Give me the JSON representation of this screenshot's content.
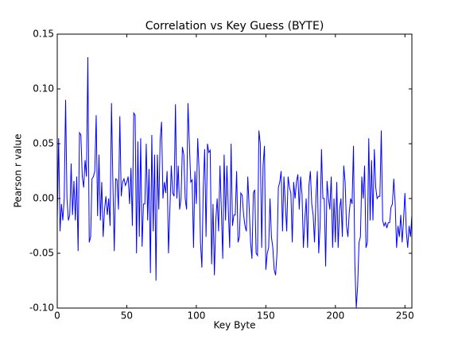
{
  "chart_data": {
    "type": "line",
    "title": "Correlation vs Key Guess (BYTE)",
    "x_label": "Key Byte",
    "y_label": "Pearson r value",
    "x": [
      0,
      1,
      2,
      3,
      4,
      5,
      6,
      7,
      8,
      9,
      10,
      11,
      12,
      13,
      14,
      15,
      16,
      17,
      18,
      19,
      20,
      21,
      22,
      23,
      24,
      25,
      26,
      27,
      28,
      29,
      30,
      31,
      32,
      33,
      34,
      35,
      36,
      37,
      38,
      39,
      40,
      41,
      42,
      43,
      44,
      45,
      46,
      47,
      48,
      49,
      50,
      51,
      52,
      53,
      54,
      55,
      56,
      57,
      58,
      59,
      60,
      61,
      62,
      63,
      64,
      65,
      66,
      67,
      68,
      69,
      70,
      71,
      72,
      73,
      74,
      75,
      76,
      77,
      78,
      79,
      80,
      81,
      82,
      83,
      84,
      85,
      86,
      87,
      88,
      89,
      90,
      91,
      92,
      93,
      94,
      95,
      96,
      97,
      98,
      99,
      100,
      101,
      102,
      103,
      104,
      105,
      106,
      107,
      108,
      109,
      110,
      111,
      112,
      113,
      114,
      115,
      116,
      117,
      118,
      119,
      120,
      121,
      122,
      123,
      124,
      125,
      126,
      127,
      128,
      129,
      130,
      131,
      132,
      133,
      134,
      135,
      136,
      137,
      138,
      139,
      140,
      141,
      142,
      143,
      144,
      145,
      146,
      147,
      148,
      149,
      150,
      151,
      152,
      153,
      154,
      155,
      156,
      157,
      158,
      159,
      160,
      161,
      162,
      163,
      164,
      165,
      166,
      167,
      168,
      169,
      170,
      171,
      172,
      173,
      174,
      175,
      176,
      177,
      178,
      179,
      180,
      181,
      182,
      183,
      184,
      185,
      186,
      187,
      188,
      189,
      190,
      191,
      192,
      193,
      194,
      195,
      196,
      197,
      198,
      199,
      200,
      201,
      202,
      203,
      204,
      205,
      206,
      207,
      208,
      209,
      210,
      211,
      212,
      213,
      214,
      215,
      216,
      217,
      218,
      219,
      220,
      221,
      222,
      223,
      224,
      225,
      226,
      227,
      228,
      229,
      230,
      231,
      232,
      233,
      234,
      235,
      236,
      237,
      238,
      239,
      240,
      241,
      242,
      243,
      244,
      245,
      246,
      247,
      248,
      249,
      250,
      251,
      252,
      253,
      254,
      255
    ],
    "series": [
      {
        "name": "r",
        "color": "#0000ff",
        "values": [
          -0.02,
          0.055,
          -0.03,
          -0.005,
          -0.02,
          0.0,
          0.09,
          0.0,
          -0.02,
          -0.015,
          0.032,
          -0.015,
          0.016,
          -0.02,
          0.02,
          -0.048,
          0.06,
          0.058,
          0.02,
          0.01,
          0.035,
          0.02,
          0.129,
          -0.04,
          -0.035,
          0.018,
          0.02,
          0.025,
          0.076,
          -0.016,
          0.04,
          -0.02,
          0.015,
          -0.035,
          -0.01,
          0.002,
          -0.015,
          0.0,
          -0.025,
          0.087,
          0.015,
          -0.048,
          0.018,
          0.017,
          -0.01,
          0.075,
          0.002,
          0.015,
          0.018,
          0.012,
          0.015,
          0.02,
          -0.005,
          0.028,
          -0.025,
          0.078,
          0.076,
          -0.05,
          0.052,
          -0.035,
          0.055,
          -0.044,
          -0.005,
          -0.005,
          0.05,
          -0.02,
          0.027,
          -0.068,
          0.058,
          -0.03,
          0.04,
          -0.075,
          0.04,
          -0.01,
          0.054,
          0.07,
          0.0,
          0.015,
          0.005,
          0.025,
          -0.05,
          -0.01,
          0.03,
          0.005,
          0.002,
          0.086,
          0.0,
          0.03,
          -0.01,
          0.0,
          0.047,
          0.04,
          0.0,
          -0.01,
          0.087,
          0.05,
          0.015,
          0.017,
          -0.045,
          0.025,
          -0.005,
          0.055,
          0.025,
          -0.04,
          -0.063,
          0.01,
          0.045,
          -0.035,
          0.05,
          0.042,
          0.044,
          -0.06,
          -0.005,
          -0.07,
          -0.02,
          0.0,
          -0.03,
          0.03,
          -0.01,
          -0.055,
          0.04,
          -0.02,
          0.03,
          -0.01,
          -0.045,
          0.05,
          -0.025,
          -0.015,
          -0.015,
          0.025,
          -0.04,
          -0.035,
          0.005,
          0.003,
          -0.015,
          -0.025,
          -0.03,
          0.02,
          -0.008,
          -0.04,
          -0.055,
          0.005,
          0.008,
          -0.05,
          -0.052,
          0.062,
          0.05,
          -0.045,
          0.03,
          0.048,
          -0.065,
          -0.05,
          -0.045,
          0.0,
          -0.035,
          -0.045,
          -0.065,
          -0.07,
          -0.05,
          0.01,
          0.015,
          0.025,
          -0.03,
          0.02,
          -0.005,
          -0.03,
          0.02,
          0.01,
          0.005,
          -0.04,
          0.015,
          0.0,
          0.015,
          0.022,
          -0.01,
          0.02,
          0.004,
          -0.045,
          -0.02,
          0.0,
          -0.045,
          0.012,
          0.025,
          -0.005,
          -0.015,
          -0.04,
          0.0,
          0.025,
          -0.05,
          -0.025,
          0.045,
          0.0,
          0.0,
          -0.062,
          0.016,
          0.0,
          -0.01,
          0.02,
          -0.045,
          0.0,
          -0.04,
          0.015,
          -0.045,
          -0.01,
          0.0,
          -0.035,
          0.03,
          0.015,
          -0.025,
          -0.035,
          -0.012,
          0.0,
          -0.005,
          0.048,
          -0.06,
          -0.1,
          -0.08,
          -0.04,
          -0.035,
          0.02,
          0.0,
          0.03,
          -0.045,
          -0.04,
          0.055,
          -0.02,
          0.035,
          -0.02,
          0.045,
          0.01,
          0.0,
          0.002,
          0.002,
          0.062,
          -0.02,
          -0.025,
          -0.022,
          -0.027,
          -0.022,
          -0.022,
          -0.008,
          -0.005,
          0.018,
          -0.005,
          -0.045,
          -0.025,
          -0.035,
          -0.015,
          -0.04,
          -0.02,
          0.005,
          -0.03,
          -0.045,
          -0.025,
          -0.035,
          -0.015
        ]
      }
    ],
    "xlim": [
      0,
      255
    ],
    "xticks": [
      0,
      50,
      100,
      150,
      200,
      250
    ],
    "ylim": [
      -0.1,
      0.15
    ],
    "yticks": [
      {
        "value": -0.1,
        "label": "-0.10"
      },
      -0.05,
      {
        "value": 0,
        "label": "0.00"
      },
      0.05,
      {
        "value": 0.1,
        "label": "0.10"
      },
      0.15
    ],
    "grid": false
  }
}
